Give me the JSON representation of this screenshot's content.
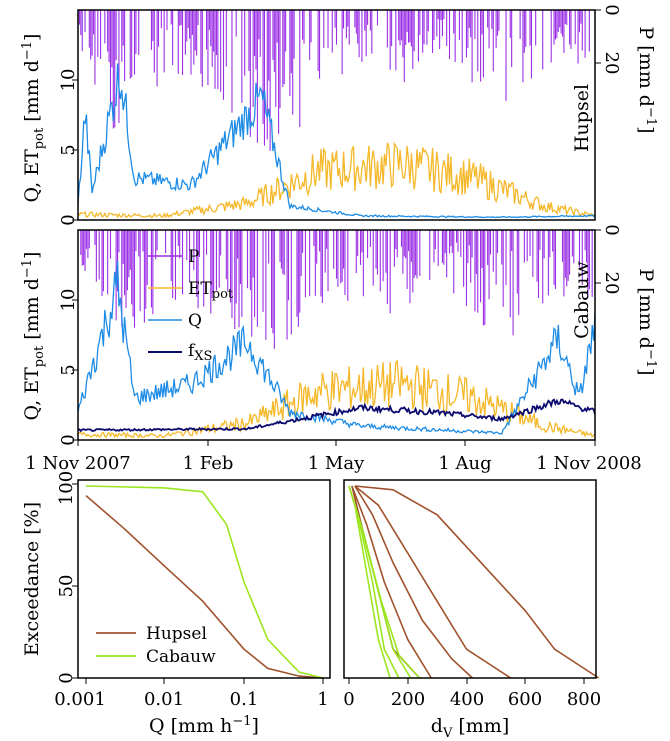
{
  "colors": {
    "precip": "#9b30e6",
    "etpot": "#f5b82a",
    "discharge": "#1e8ce6",
    "fxs": "#0a0a6e",
    "hupsel": "#a0522d",
    "cabauw": "#9be61e"
  },
  "chart_data": [
    {
      "type": "line",
      "panel": "Hupsel time series",
      "site_label": "Hupsel",
      "ylabel": "Q, ET",
      "ylabel_sub": "pot",
      "ylabel_unit": "[mm d",
      "ylabel_sup": "−1",
      "ylabel_close": "]",
      "ylim": [
        0,
        15
      ],
      "y_ticks": [
        "0",
        "5",
        "10"
      ],
      "y2label": "P [mm d",
      "y2label_sup": "−1",
      "y2label_close": "]",
      "y2lim_inverted": [
        0,
        40
      ],
      "y2_ticks": [
        "0",
        "20"
      ],
      "x_range": [
        "2007-11-01",
        "2008-11-01"
      ],
      "series": [
        {
          "key": "P",
          "values_keypoints": [
            [
              0,
              6
            ],
            [
              30,
              25
            ],
            [
              60,
              12
            ],
            [
              100,
              15
            ],
            [
              140,
              28
            ],
            [
              180,
              12
            ],
            [
              220,
              15
            ],
            [
              260,
              8
            ],
            [
              300,
              18
            ],
            [
              340,
              10
            ]
          ]
        },
        {
          "key": "ET",
          "values_keypoints": [
            [
              0,
              0.4
            ],
            [
              60,
              0.3
            ],
            [
              120,
              1.2
            ],
            [
              170,
              3.5
            ],
            [
              230,
              4.0
            ],
            [
              280,
              3.0
            ],
            [
              330,
              1.0
            ],
            [
              366,
              0.3
            ]
          ]
        },
        {
          "key": "Q",
          "values_keypoints": [
            [
              0,
              1
            ],
            [
              5,
              7.6
            ],
            [
              10,
              2
            ],
            [
              30,
              10.7
            ],
            [
              40,
              3
            ],
            [
              80,
              2.5
            ],
            [
              100,
              5
            ],
            [
              130,
              8.7
            ],
            [
              150,
              1
            ],
            [
              200,
              0.3
            ],
            [
              300,
              0.2
            ],
            [
              366,
              0.3
            ]
          ]
        }
      ]
    },
    {
      "type": "line",
      "panel": "Cabauw time series",
      "site_label": "Cabauw",
      "ylabel": "Q, ET",
      "ylabel_sub": "pot",
      "ylabel_unit": "[mm d",
      "ylabel_sup": "−1",
      "ylabel_close": "]",
      "ylim": [
        0,
        15
      ],
      "y_ticks": [
        "0",
        "5",
        "10"
      ],
      "y2label": "P [mm d",
      "y2label_sup": "−1",
      "y2label_close": "]",
      "y2lim_inverted": [
        0,
        40
      ],
      "y2_ticks": [
        "0",
        "20"
      ],
      "x_ticks": [
        "1 Nov 2007",
        "1 Feb",
        "1 May",
        "1 Aug",
        "1 Nov 2008"
      ],
      "legend": [
        {
          "key": "P",
          "label": "P",
          "sub": ""
        },
        {
          "key": "ET",
          "label": "ET",
          "sub": "pot"
        },
        {
          "key": "Q",
          "label": "Q",
          "sub": ""
        },
        {
          "key": "fXS",
          "label": "f",
          "sub": "XS"
        }
      ],
      "series": [
        {
          "key": "P",
          "values_keypoints": [
            [
              0,
              8
            ],
            [
              30,
              20
            ],
            [
              60,
              14
            ],
            [
              100,
              18
            ],
            [
              140,
              22
            ],
            [
              180,
              12
            ],
            [
              220,
              15
            ],
            [
              260,
              10
            ],
            [
              300,
              20
            ],
            [
              340,
              12
            ]
          ]
        },
        {
          "key": "ET",
          "values_keypoints": [
            [
              0,
              0.4
            ],
            [
              60,
              0.3
            ],
            [
              120,
              1.2
            ],
            [
              170,
              3.5
            ],
            [
              230,
              4.0
            ],
            [
              280,
              3.0
            ],
            [
              330,
              1.0
            ],
            [
              366,
              0.3
            ]
          ]
        },
        {
          "key": "Q",
          "values_keypoints": [
            [
              0,
              2
            ],
            [
              28,
              11
            ],
            [
              40,
              3
            ],
            [
              80,
              4
            ],
            [
              120,
              7
            ],
            [
              150,
              2
            ],
            [
              200,
              1
            ],
            [
              300,
              0.5
            ],
            [
              340,
              7.2
            ],
            [
              355,
              3
            ],
            [
              366,
              8.2
            ]
          ]
        },
        {
          "key": "fXS",
          "values_keypoints": [
            [
              0,
              0.7
            ],
            [
              120,
              0.8
            ],
            [
              200,
              2.3
            ],
            [
              250,
              2.0
            ],
            [
              300,
              1.5
            ],
            [
              340,
              2.8
            ],
            [
              366,
              2.0
            ]
          ]
        }
      ]
    },
    {
      "type": "line",
      "panel": "Exceedance vs Q",
      "ylabel": "Exceedance [%]",
      "xlabel": "Q [mm h",
      "xlabel_sup": "−1",
      "xlabel_close": "]",
      "x_scale": "log",
      "xlim": [
        0.001,
        1
      ],
      "ylim": [
        0,
        100
      ],
      "x_ticks": [
        "0.001",
        "0.01",
        "0.1",
        "1"
      ],
      "y_ticks": [
        "0",
        "50",
        "100"
      ],
      "legend": [
        {
          "key": "hupsel",
          "label": "Hupsel"
        },
        {
          "key": "cabauw",
          "label": "Cabauw"
        }
      ],
      "series": [
        {
          "key": "hupsel",
          "x": [
            0.001,
            0.003,
            0.01,
            0.03,
            0.1,
            0.2,
            0.5,
            1
          ],
          "y": [
            95,
            78,
            58,
            40,
            15,
            5,
            1,
            0
          ]
        },
        {
          "key": "cabauw",
          "x": [
            0.001,
            0.01,
            0.03,
            0.06,
            0.1,
            0.2,
            0.5,
            1
          ],
          "y": [
            100,
            99,
            97,
            80,
            50,
            20,
            3,
            0
          ]
        }
      ]
    },
    {
      "type": "line",
      "panel": "Exceedance vs dV",
      "xlabel": "d",
      "xlabel_sub": "V",
      "xlabel_unit": "[mm]",
      "xlim": [
        0,
        850
      ],
      "ylim": [
        0,
        100
      ],
      "x_ticks": [
        "0",
        "200",
        "400",
        "600",
        "800"
      ],
      "series": [
        {
          "key": "hupsel",
          "x": [
            20,
            150,
            300,
            450,
            600,
            700,
            850
          ],
          "y": [
            100,
            98,
            85,
            60,
            35,
            15,
            0
          ]
        },
        {
          "key": "hupsel",
          "x": [
            20,
            100,
            200,
            300,
            400,
            550
          ],
          "y": [
            100,
            90,
            65,
            40,
            15,
            0
          ]
        },
        {
          "key": "hupsel",
          "x": [
            20,
            80,
            150,
            250,
            350,
            420
          ],
          "y": [
            100,
            85,
            60,
            30,
            10,
            0
          ]
        },
        {
          "key": "hupsel",
          "x": [
            10,
            60,
            120,
            200,
            280
          ],
          "y": [
            100,
            80,
            50,
            20,
            0
          ]
        },
        {
          "key": "hupsel",
          "x": [
            10,
            50,
            100,
            150,
            240
          ],
          "y": [
            100,
            75,
            45,
            15,
            0
          ]
        },
        {
          "key": "cabauw",
          "x": [
            0,
            30,
            80,
            120,
            170
          ],
          "y": [
            100,
            85,
            50,
            15,
            0
          ]
        },
        {
          "key": "cabauw",
          "x": [
            0,
            40,
            100,
            150,
            210
          ],
          "y": [
            100,
            80,
            45,
            15,
            0
          ]
        },
        {
          "key": "cabauw",
          "x": [
            0,
            50,
            110,
            170,
            240
          ],
          "y": [
            100,
            75,
            40,
            12,
            0
          ]
        },
        {
          "key": "cabauw",
          "x": [
            0,
            20,
            60,
            100,
            140
          ],
          "y": [
            100,
            90,
            55,
            20,
            0
          ]
        }
      ]
    }
  ]
}
